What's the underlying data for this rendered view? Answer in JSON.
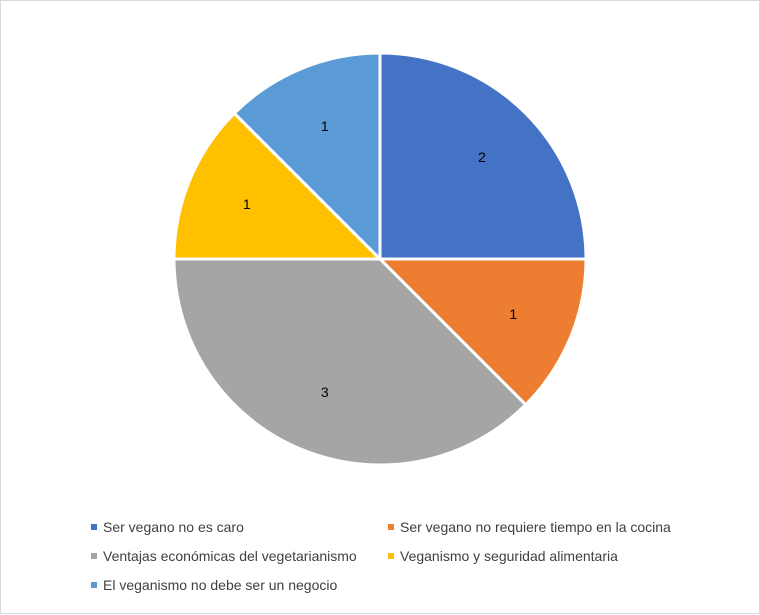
{
  "chart_data": {
    "type": "pie",
    "title": "",
    "categories": [
      "Ser vegano no es caro",
      "Ser vegano no requiere tiempo en la cocina",
      "Ventajas económicas del vegetarianismo",
      "Veganismo y seguridad alimentaria",
      "El veganismo no debe ser un negocio"
    ],
    "values": [
      2,
      1,
      3,
      1,
      1
    ],
    "colors": [
      "#4472c4",
      "#ed7d31",
      "#a5a5a5",
      "#ffc000",
      "#5b9bd5"
    ],
    "data_labels": [
      "2",
      "1",
      "3",
      "1",
      "1"
    ],
    "legend": {
      "placement": "bottom",
      "entries": [
        "Ser vegano no es caro",
        "Ser vegano no requiere tiempo en la cocina",
        "Ventajas económicas del vegetarianismo",
        "Veganismo y seguridad alimentaria",
        "El veganismo no debe ser un negocio"
      ]
    },
    "start_angle": "12 o'clock",
    "direction": "clockwise"
  }
}
